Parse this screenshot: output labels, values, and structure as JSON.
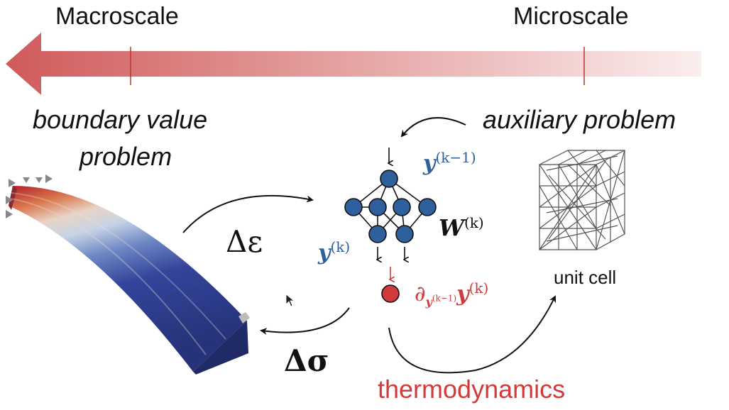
{
  "scale": {
    "left_label": "Macroscale",
    "right_label": "Microscale",
    "arrow_color": "#d05a5a"
  },
  "macro": {
    "line1": "boundary value",
    "line2": "problem"
  },
  "micro": {
    "title": "auxiliary problem",
    "unit_cell_label": "unit cell"
  },
  "flow": {
    "strain_increment": "Δε",
    "stress_increment": "Δσ",
    "thermo_label": "thermodynamics"
  },
  "network": {
    "output_label": "y",
    "output_sup": "(k−1)",
    "input_label": "y",
    "input_sup": "(k)",
    "weights_label": "W",
    "weights_sup": "(k)",
    "deriv_symbol": "∂",
    "deriv_sub": "y",
    "deriv_sub_sup": "(k−1)",
    "deriv_y": "y",
    "deriv_y_sup": "(k)",
    "node_color": "#2f5f9c",
    "deriv_node_color": "#d23b3b"
  },
  "colors": {
    "beam_top": "#b41c28",
    "beam_bottom": "#26337a",
    "beam_side": "#1f2a66"
  }
}
